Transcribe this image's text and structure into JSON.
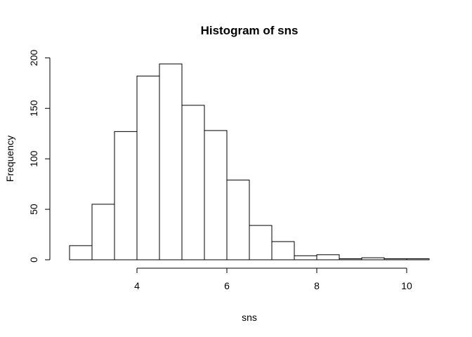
{
  "chart_data": {
    "type": "bar",
    "title": "Histogram of sns",
    "xlabel": "sns",
    "ylabel": "Frequency",
    "xlim": [
      2.5,
      10.5
    ],
    "ylim": [
      0,
      200
    ],
    "x_ticks": [
      4,
      6,
      8,
      10
    ],
    "y_ticks": [
      0,
      50,
      100,
      150,
      200
    ],
    "bin_edges": [
      2.5,
      3.0,
      3.5,
      4.0,
      4.5,
      5.0,
      5.5,
      6.0,
      6.5,
      7.0,
      7.5,
      8.0,
      8.5,
      9.0,
      9.5,
      10.0,
      10.5
    ],
    "values": [
      14,
      55,
      127,
      182,
      194,
      153,
      128,
      79,
      34,
      18,
      4,
      5,
      1,
      2,
      1,
      1
    ],
    "grid": false,
    "legend": "none",
    "colors": {
      "bar_fill": "#ffffff",
      "bar_stroke": "#000000"
    }
  }
}
